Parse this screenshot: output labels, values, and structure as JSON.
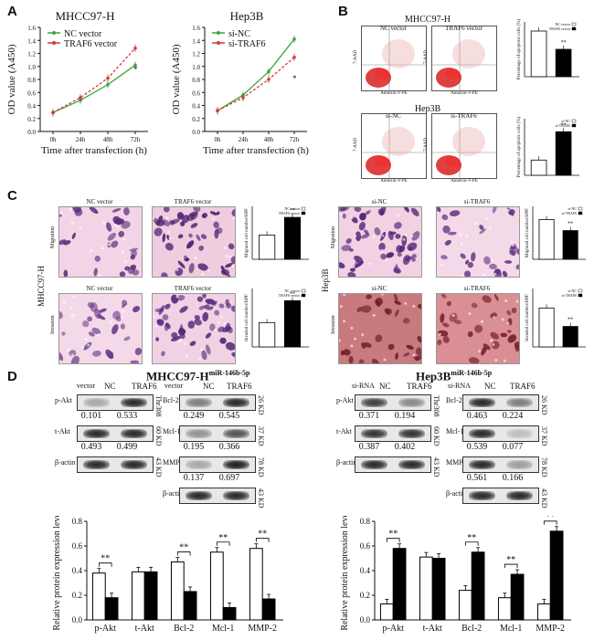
{
  "panels": {
    "A": "A",
    "B": "B",
    "C": "C",
    "D": "D"
  },
  "panelA": {
    "chart_data": [
      {
        "type": "line",
        "title": "MHCC97-H",
        "xlabel": "Time after transfection (h)",
        "ylabel": "OD value (A450)",
        "categories": [
          "0h",
          "24h",
          "48h",
          "72h"
        ],
        "ylim": [
          0.0,
          1.6
        ],
        "yticks": [
          "0.0",
          "0.2",
          "0.4",
          "0.6",
          "0.8",
          "1.0",
          "1.2",
          "1.4",
          "1.6"
        ],
        "series": [
          {
            "name": "NC vector",
            "values": [
              0.29,
              0.48,
              0.72,
              1.02
            ],
            "color": "#3aa83a"
          },
          {
            "name": "TRAF6 vector",
            "values": [
              0.29,
              0.52,
              0.82,
              1.28
            ],
            "color": "#d63a3a"
          }
        ],
        "annotation": "*"
      },
      {
        "type": "line",
        "title": "Hep3B",
        "xlabel": "Time after transfection (h)",
        "ylabel": "OD value (A450)",
        "categories": [
          "0h",
          "24h",
          "48h",
          "72h"
        ],
        "ylim": [
          0.0,
          1.6
        ],
        "yticks": [
          "0.0",
          "0.2",
          "0.4",
          "0.6",
          "0.8",
          "1.0",
          "1.2",
          "1.4",
          "1.6"
        ],
        "series": [
          {
            "name": "si-NC",
            "values": [
              0.32,
              0.56,
              0.92,
              1.42
            ],
            "color": "#3aa83a"
          },
          {
            "name": "si-TRAF6",
            "values": [
              0.32,
              0.52,
              0.8,
              1.14
            ],
            "color": "#d63a3a"
          }
        ],
        "annotation": "*"
      }
    ]
  },
  "panelB": {
    "mhcc_title": "MHCC97-H",
    "hep_title": "Hep3B",
    "flow_labels": [
      "NC vector",
      "TRAF6 vector",
      "si-NC",
      "si-TRAF6"
    ],
    "flow_x": "Annexin-V-PE",
    "flow_y": "7-AAD",
    "chart_data": [
      {
        "type": "bar",
        "ylabel": "Percentage of apoptotic cells (%)",
        "categories": [
          "NC vector",
          "TRAF6 vector"
        ],
        "values": [
          1.0,
          0.6
        ],
        "ylim": [
          0,
          1.2
        ],
        "annotation": "**"
      },
      {
        "type": "bar",
        "ylabel": "Percentage of apoptotic cells (%)",
        "categories": [
          "si-NC",
          "si-TRAF6"
        ],
        "values": [
          0.35,
          1.0
        ],
        "ylim": [
          0,
          1.3
        ],
        "annotation": "**"
      }
    ]
  },
  "panelC": {
    "left_cell": "MHCC97-H",
    "right_cell": "Hep3B",
    "row_migration": "Migration",
    "row_invasion": "Invasion",
    "labels_left": [
      "NC vector",
      "TRAF6 vector"
    ],
    "labels_right": [
      "si-NC",
      "si-TRAF6"
    ],
    "chart_data": [
      {
        "type": "bar",
        "ylabel": "Migrated cell number/HPF",
        "categories": [
          "NC vector",
          "TRAF6 vector"
        ],
        "values": [
          0.55,
          0.95
        ],
        "ylim": [
          0,
          1.2
        ],
        "annotation": "**"
      },
      {
        "type": "bar",
        "ylabel": "Invaded cell number/HPF",
        "categories": [
          "NC vector",
          "TRAF6 vector"
        ],
        "values": [
          0.5,
          0.95
        ],
        "ylim": [
          0,
          1.2
        ],
        "annotation": "**"
      },
      {
        "type": "bar",
        "ylabel": "Migrated cell number/HPF",
        "categories": [
          "si-NC",
          "si-TRAF6"
        ],
        "values": [
          0.9,
          0.65
        ],
        "ylim": [
          0,
          1.2
        ],
        "annotation": "**"
      },
      {
        "type": "bar",
        "ylabel": "Invaded cell number/HPF",
        "categories": [
          "si-NC",
          "si-TRAF6"
        ],
        "values": [
          0.8,
          0.42
        ],
        "ylim": [
          0,
          1.2
        ],
        "annotation": "**"
      }
    ]
  },
  "panelD": {
    "left_title": "MHCC97-H",
    "left_sup": "miR-146b-5p",
    "right_title": "Hep3B",
    "right_sup": "miR-146b-5p",
    "left_head": {
      "group": "vector",
      "c1": "NC",
      "c2": "TRAF6"
    },
    "right_head": {
      "group": "si-RNA",
      "c1": "NC",
      "c2": "TRAF6"
    },
    "blots_left_a": [
      {
        "label": "p-Akt",
        "kd": "Thr308",
        "v1": "0.101",
        "v2": "0.533"
      },
      {
        "label": "t-Akt",
        "kd": "60 KD",
        "v1": "0.493",
        "v2": "0.499"
      },
      {
        "label": "β-actin",
        "kd": "43 KD",
        "v1": "",
        "v2": ""
      }
    ],
    "blots_left_b": [
      {
        "label": "Bcl-2",
        "kd": "26 KD",
        "v1": "0.249",
        "v2": "0.545"
      },
      {
        "label": "Mcl-1",
        "kd": "37 KD",
        "v1": "0.195",
        "v2": "0.366"
      },
      {
        "label": "MMP-2",
        "kd": "78 KD",
        "v1": "0.137",
        "v2": "0.697"
      },
      {
        "label": "β-actin",
        "kd": "43 KD",
        "v1": "",
        "v2": ""
      }
    ],
    "blots_right_a": [
      {
        "label": "p-Akt",
        "kd": "Thr308",
        "v1": "0.371",
        "v2": "0.194"
      },
      {
        "label": "t-Akt",
        "kd": "60 KD",
        "v1": "0.387",
        "v2": "0.402"
      },
      {
        "label": "β-actin",
        "kd": "43 KD",
        "v1": "",
        "v2": ""
      }
    ],
    "blots_right_b": [
      {
        "label": "Bcl-2",
        "kd": "26 KD",
        "v1": "0.463",
        "v2": "0.224"
      },
      {
        "label": "Mcl-1",
        "kd": "37 KD",
        "v1": "0.539",
        "v2": "0.077"
      },
      {
        "label": "MMP-2",
        "kd": "78 KD",
        "v1": "0.561",
        "v2": "0.166"
      },
      {
        "label": "β-actin",
        "kd": "43 KD",
        "v1": "",
        "v2": ""
      }
    ],
    "chart_data": [
      {
        "type": "bar",
        "ylabel": "Relative protein expression level",
        "categories": [
          "p-Akt",
          "t-Akt",
          "Bcl-2",
          "Mcl-1",
          "MMP-2"
        ],
        "ylim": [
          0.0,
          0.8
        ],
        "yticks": [
          "0.0",
          "0.2",
          "0.4",
          "0.6",
          "0.8"
        ],
        "series": [
          {
            "values": [
              0.38,
              0.39,
              0.47,
              0.55,
              0.58
            ],
            "color": "#ffffff"
          },
          {
            "values": [
              0.18,
              0.39,
              0.23,
              0.1,
              0.17
            ],
            "color": "#000000"
          }
        ],
        "sig": [
          "**",
          "",
          "**",
          "**",
          "**"
        ]
      },
      {
        "type": "bar",
        "ylabel": "Relative protein expression level",
        "categories": [
          "p-Akt",
          "t-Akt",
          "Bcl-2",
          "Mcl-1",
          "MMP-2"
        ],
        "ylim": [
          0.0,
          0.8
        ],
        "yticks": [
          "0.0",
          "0.2",
          "0.4",
          "0.6",
          "0.8"
        ],
        "series": [
          {
            "values": [
              0.13,
              0.51,
              0.24,
              0.18,
              0.13
            ],
            "color": "#ffffff"
          },
          {
            "values": [
              0.58,
              0.5,
              0.55,
              0.37,
              0.72
            ],
            "color": "#000000"
          }
        ],
        "sig": [
          "**",
          "",
          "**",
          "**",
          "**"
        ]
      }
    ]
  }
}
